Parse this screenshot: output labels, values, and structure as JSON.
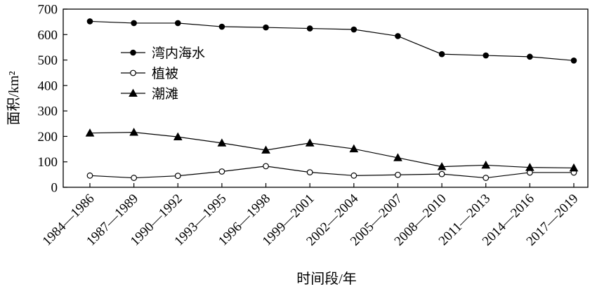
{
  "chart_data": {
    "type": "line",
    "xlabel": "时间段/年",
    "ylabel": "面积/km²",
    "ylim": [
      0,
      700
    ],
    "yticks": [
      0,
      100,
      200,
      300,
      400,
      500,
      600,
      700
    ],
    "grid": false,
    "legend_position": "upper-left",
    "categories": [
      "1984—1986",
      "1987—1989",
      "1990—1992",
      "1993—1995",
      "1996—1998",
      "1999—2001",
      "2002—2004",
      "2005—2007",
      "2008—2010",
      "2011—2013",
      "2014—2016",
      "2017—2019"
    ],
    "series": [
      {
        "name": "湾内海水",
        "marker": "filled-circle",
        "values": [
          652,
          645,
          645,
          631,
          628,
          624,
          620,
          594,
          523,
          518,
          513,
          498
        ]
      },
      {
        "name": "植被",
        "marker": "open-circle",
        "values": [
          46,
          37,
          45,
          62,
          83,
          59,
          46,
          49,
          52,
          37,
          58,
          58
        ]
      },
      {
        "name": "潮滩",
        "marker": "filled-triangle",
        "values": [
          213,
          216,
          198,
          174,
          146,
          174,
          151,
          116,
          81,
          87,
          78,
          76
        ]
      }
    ]
  }
}
